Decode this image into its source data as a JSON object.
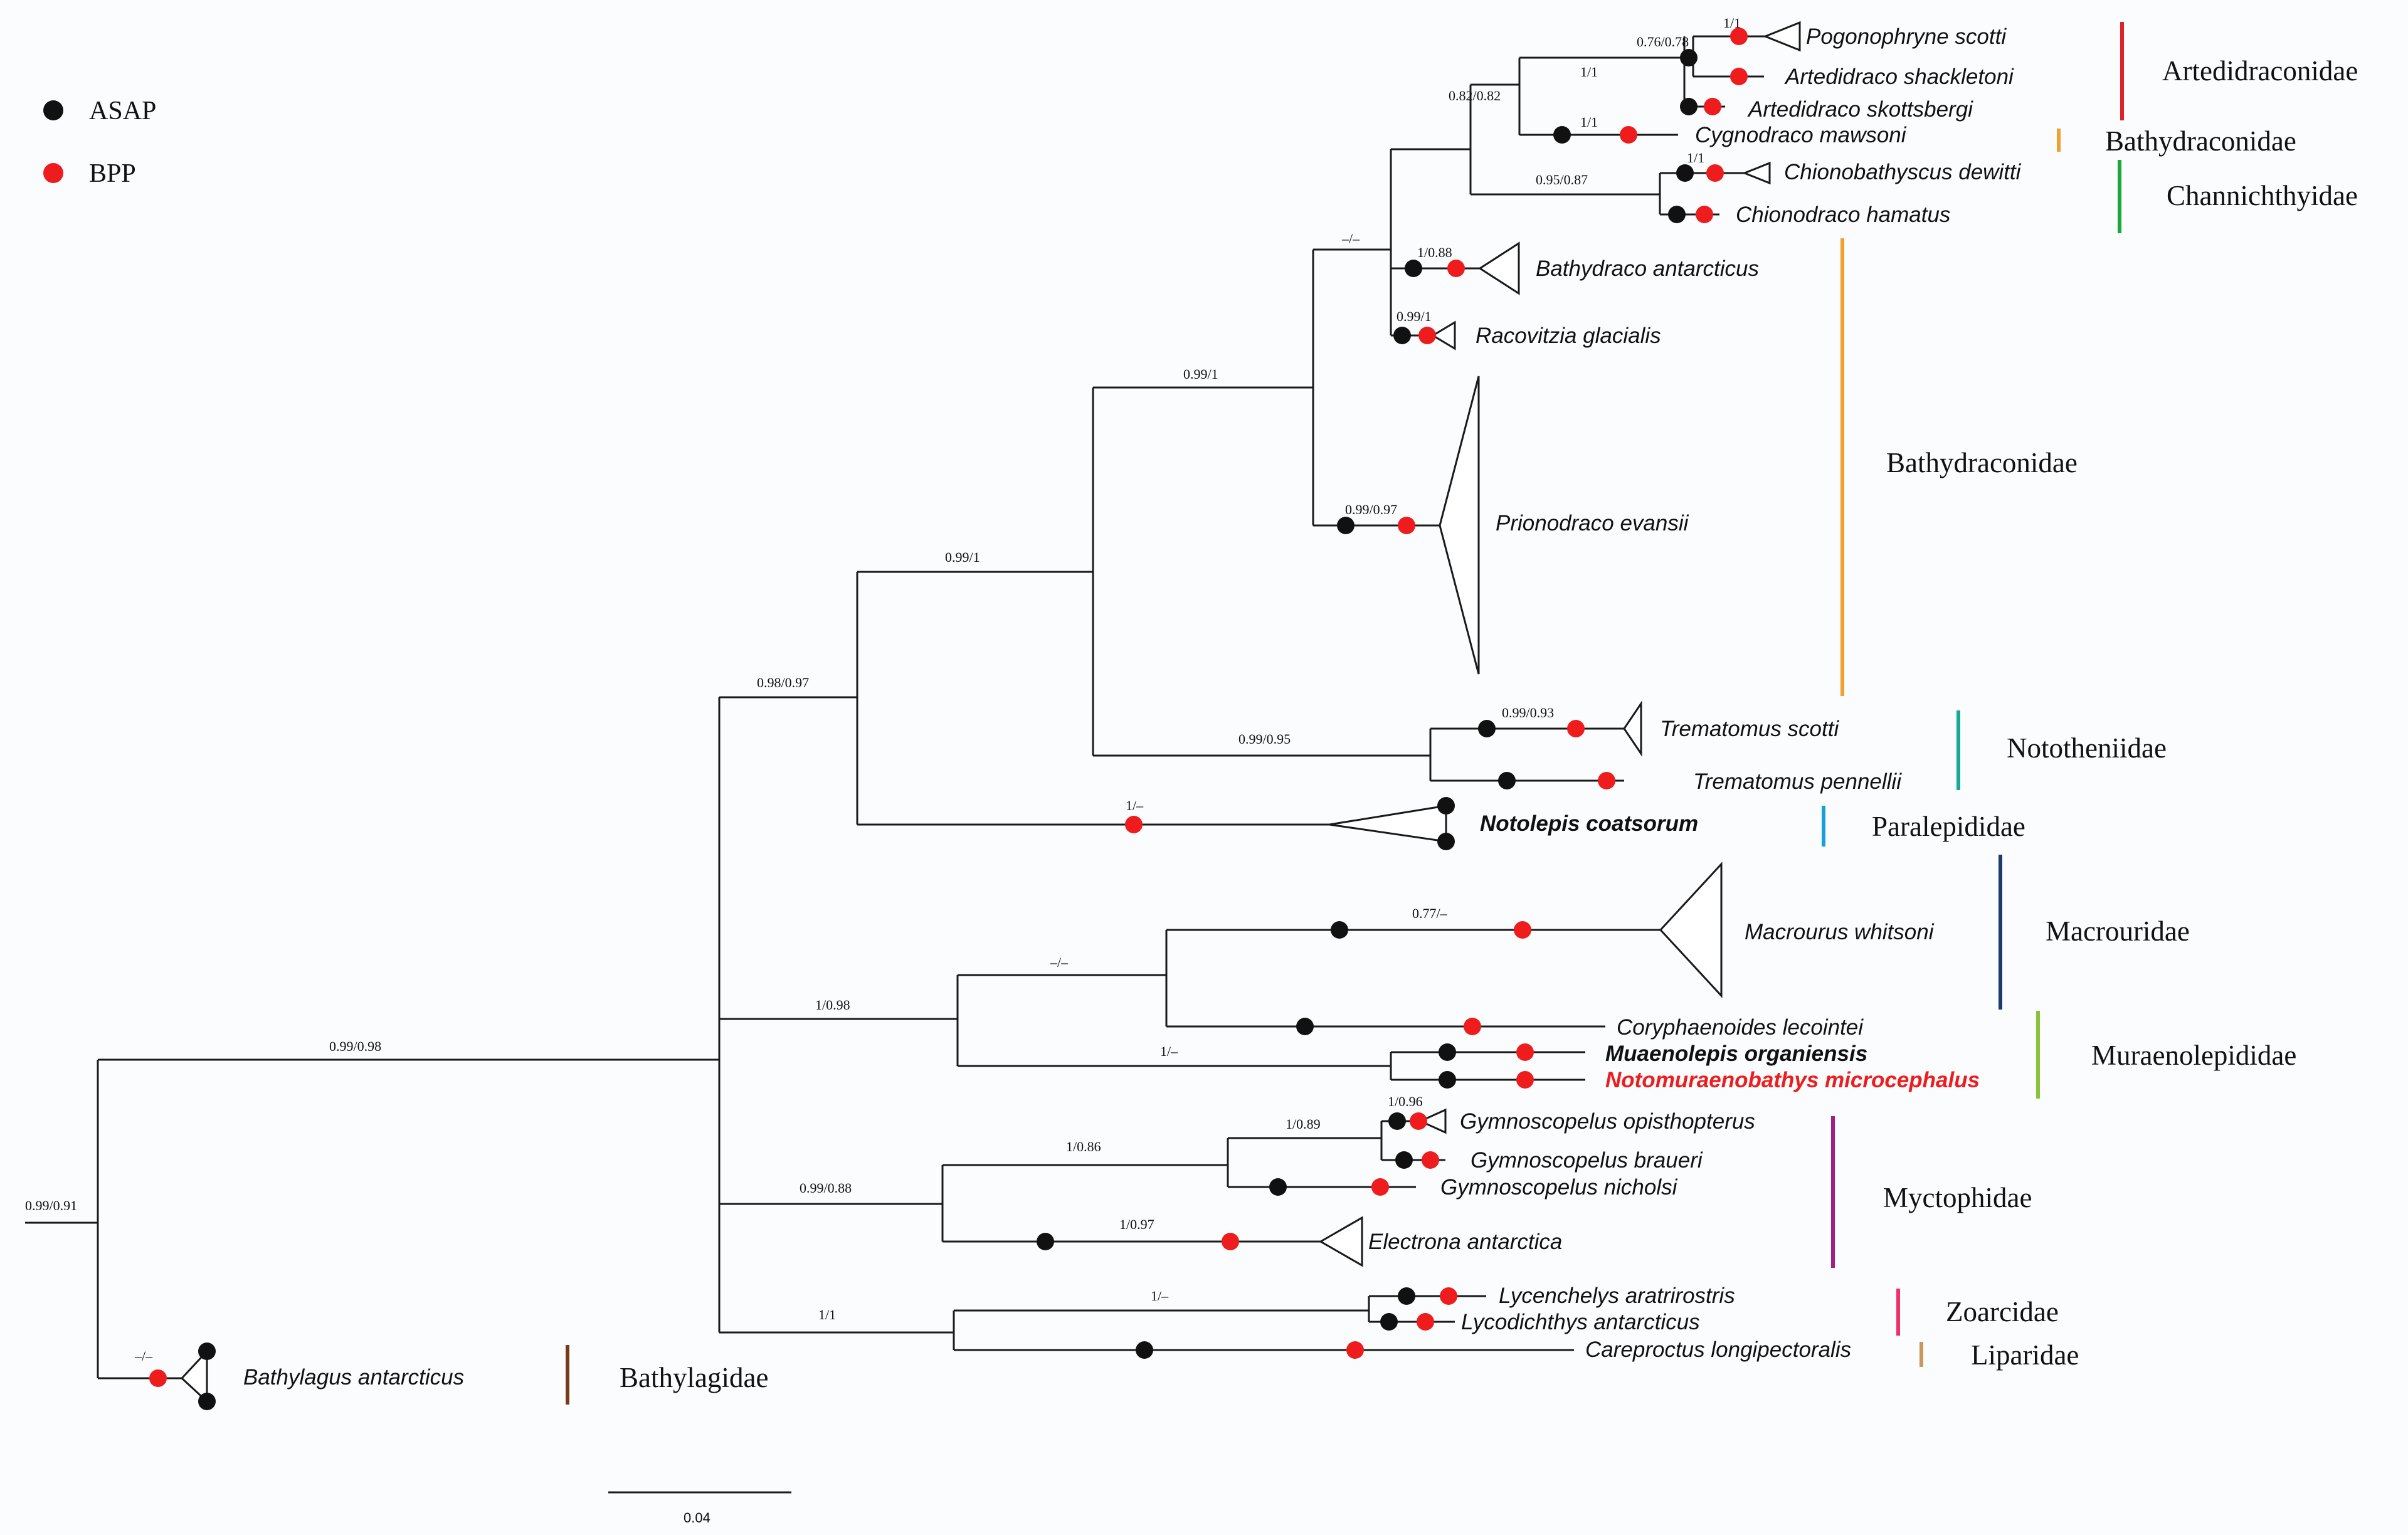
{
  "legend": {
    "asap": {
      "label": "ASAP",
      "color": "#111111"
    },
    "bpp": {
      "label": "BPP",
      "color": "#ee1c1c"
    }
  },
  "scale_bar": {
    "label": "0.04"
  },
  "taxa": {
    "pogonophryne": "Pogonophryne scotti",
    "artedidraco_sh": "Artedidraco shackletoni",
    "artedidraco_sk": "Artedidraco skottsbergi",
    "cygnodraco": "Cygnodraco mawsoni",
    "chionobathyscus": "Chionobathyscus dewitti",
    "chionodraco": "Chionodraco hamatus",
    "bathydraco": "Bathydraco antarcticus",
    "racovitzia": "Racovitzia glacialis",
    "prionodraco": "Prionodraco evansii",
    "trematomus_sc": "Trematomus scotti",
    "trematomus_pe": "Trematomus pennellii",
    "notolepis": "Notolepis coatsorum",
    "macrourus": "Macrourus whitsoni",
    "coryphaenoides": "Coryphaenoides lecointei",
    "muraenolepis": "Muaenolepis organiensis",
    "notomuraenobathys": "Notomuraenobathys microcephalus",
    "gym_opis": "Gymnoscopelus opisthopterus",
    "gym_braueri": "Gymnoscopelus braueri",
    "gym_nicholsi": "Gymnoscopelus nicholsi",
    "electrona": "Electrona antarctica",
    "lycenchelys": "Lycenchelys aratrirostris",
    "lycodichthys": "Lycodichthys antarcticus",
    "careproctus": "Careproctus longipectoralis",
    "bathylagus": "Bathylagus antarcticus"
  },
  "support": {
    "root": "0.99/0.91",
    "bathylagus": "–/–",
    "ingroup": "0.99/0.98",
    "notothenioid_clade": "0.98/0.97",
    "notothenioids": "0.99/1",
    "bathydraconid_clade": "0.99/1",
    "upper_clade": "–/–",
    "arted_chann": "0.82/0.82",
    "arted": "1/1",
    "pogono": "0.76/0.78",
    "pogono_tip": "1/1",
    "cygno": "1/1",
    "chann": "0.95/0.87",
    "chiono_tip": "1/1",
    "bathydraco": "1/0.88",
    "racovitzia": "0.99/1",
    "prionodraco": "0.99/0.97",
    "trematomus": "0.99/0.95",
    "trem_scotti": "0.99/0.93",
    "notolepis": "1/–",
    "gadiform": "1/0.98",
    "macrouridae": "–/–",
    "macrourus": "0.77/–",
    "muraenolepid": "1/–",
    "myctophid": "0.99/0.88",
    "myct_inner": "1/0.86",
    "gym_clade": "1/0.89",
    "gym_opis": "1/0.96",
    "electrona": "1/0.97",
    "zoarc_lipar": "1/1",
    "zoarcid": "1/–"
  },
  "families": [
    {
      "label": "Artedidraconidae",
      "color": "#e0202a"
    },
    {
      "label": "Bathydraconidae",
      "color": "#f0a030"
    },
    {
      "label": "Channichthyidae",
      "color": "#1aa83a"
    },
    {
      "label": "Bathydraconidae",
      "color": "#f0a030"
    },
    {
      "label": "Nototheniidae",
      "color": "#18a89a"
    },
    {
      "label": "Paralepididae",
      "color": "#1aa0d8"
    },
    {
      "label": "Macrouridae",
      "color": "#1c3a6a"
    },
    {
      "label": "Muraenolepididae",
      "color": "#8ac23a"
    },
    {
      "label": "Myctophidae",
      "color": "#a0208a"
    },
    {
      "label": "Zoarcidae",
      "color": "#f0306a"
    },
    {
      "label": "Liparidae",
      "color": "#c89a5a"
    },
    {
      "label": "Bathylagidae",
      "color": "#7a3a1a"
    }
  ]
}
